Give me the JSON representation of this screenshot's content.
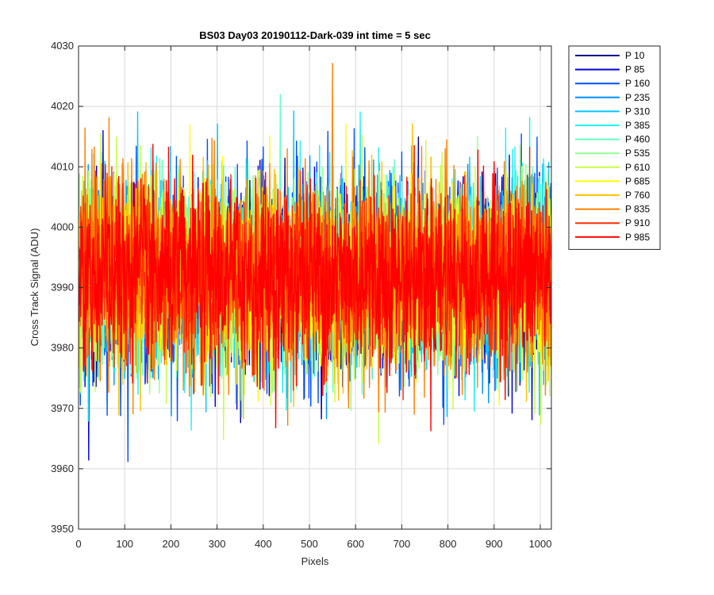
{
  "chart_data": {
    "type": "line",
    "title": "BS03 Day03 20190112-Dark-039 int time = 5 sec",
    "xlabel": "Pixels",
    "ylabel": "Cross Track Signal (ADU)",
    "xlim": [
      0,
      1024
    ],
    "ylim": [
      3950,
      4030
    ],
    "xticks": [
      0,
      100,
      200,
      300,
      400,
      500,
      600,
      700,
      800,
      900,
      1000
    ],
    "yticks": [
      3950,
      3960,
      3970,
      3980,
      3990,
      4000,
      4010,
      4020,
      4030
    ],
    "grid": true,
    "legend_position": "outside-top-right",
    "x_start": 1,
    "x_end": 1024,
    "baseline": 3992,
    "noise_range": [
      3960,
      4028
    ],
    "series": [
      {
        "name": "P 10",
        "color": "#00008f"
      },
      {
        "name": "P 85",
        "color": "#0000e0"
      },
      {
        "name": "P 160",
        "color": "#0050ff"
      },
      {
        "name": "P 235",
        "color": "#0090ff"
      },
      {
        "name": "P 310",
        "color": "#00c8ff"
      },
      {
        "name": "P 385",
        "color": "#20f0f0"
      },
      {
        "name": "P 460",
        "color": "#60ffc0"
      },
      {
        "name": "P 535",
        "color": "#90ff90"
      },
      {
        "name": "P 610",
        "color": "#c8ff40"
      },
      {
        "name": "P 685",
        "color": "#ffff00"
      },
      {
        "name": "P 760",
        "color": "#ffc000"
      },
      {
        "name": "P 835",
        "color": "#ff8000"
      },
      {
        "name": "P 910",
        "color": "#ff3000"
      },
      {
        "name": "P 985",
        "color": "#ff0000"
      }
    ]
  }
}
